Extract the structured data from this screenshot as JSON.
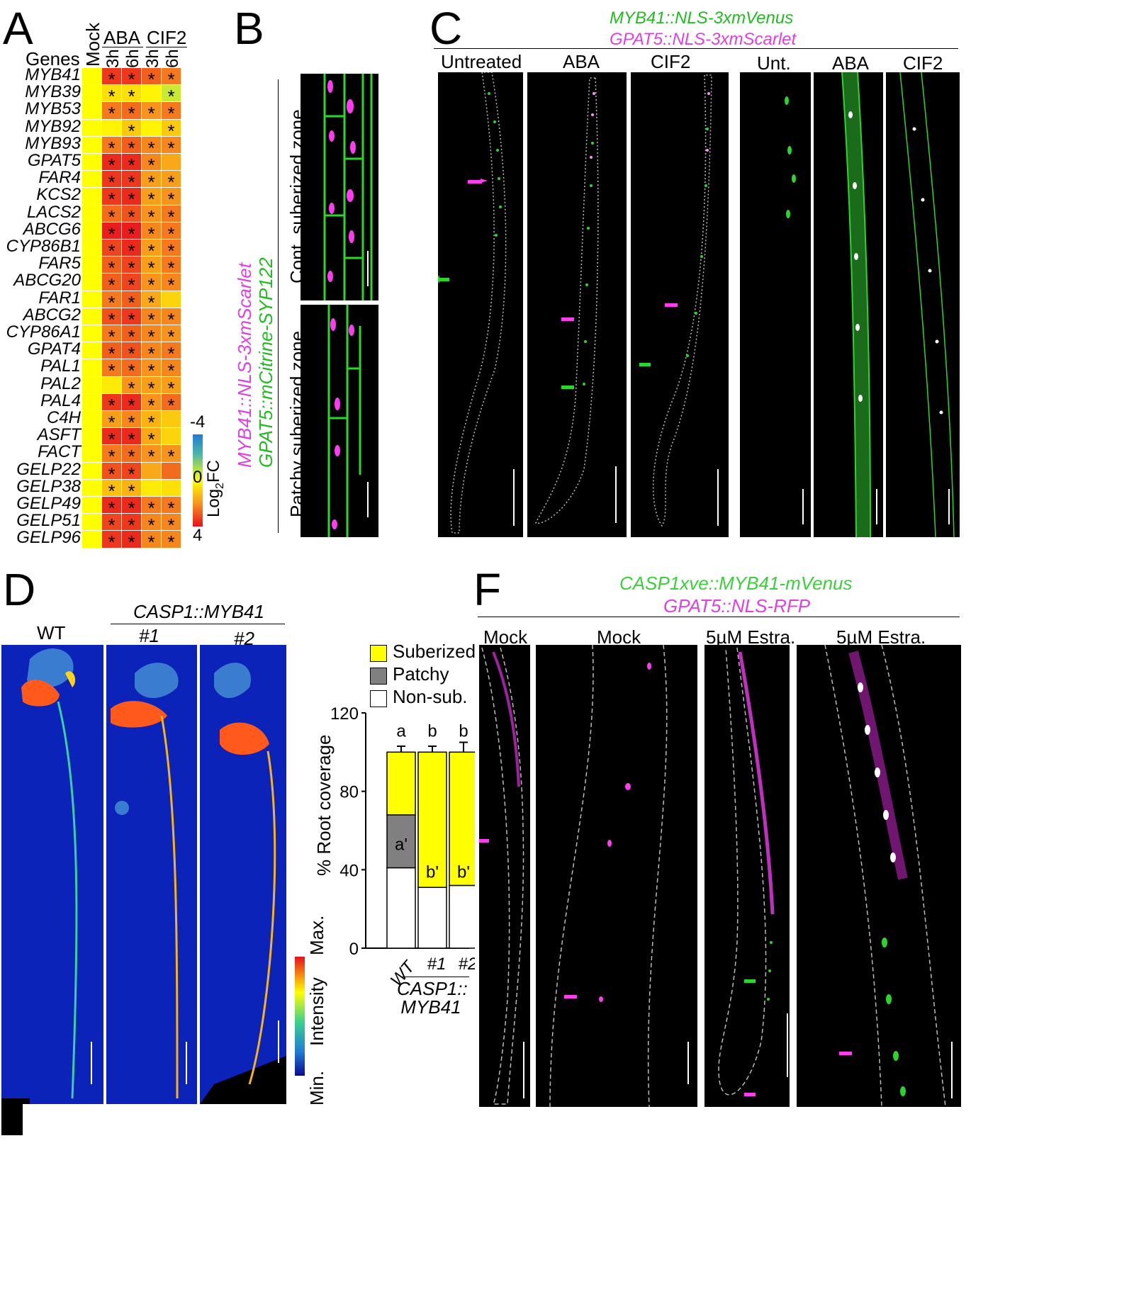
{
  "panelA": {
    "letter": "A",
    "genes_header": "Genes",
    "col_mock": "Mock",
    "group_aba": "ABA",
    "group_cif2": "CIF2",
    "cols": [
      "3h",
      "6h",
      "3h",
      "6h"
    ],
    "genes": [
      "MYB41",
      "MYB39",
      "MYB53",
      "MYB92",
      "MYB93",
      "GPAT5",
      "FAR4",
      "KCS2",
      "LACS2",
      "ABCG6",
      "CYP86B1",
      "FAR5",
      "ABCG20",
      "FAR1",
      "ABCG2",
      "CYP86A1",
      "GPAT4",
      "PAL1",
      "PAL2",
      "PAL4",
      "C4H",
      "ASFT",
      "FACT",
      "GELP22",
      "GELP38",
      "GELP49",
      "GELP51",
      "GELP96"
    ],
    "log2fc": [
      [
        0,
        3.4,
        3.4,
        2.8,
        2.4
      ],
      [
        0,
        0.6,
        0.6,
        0.2,
        -0.6
      ],
      [
        0,
        2.4,
        2.6,
        2.0,
        2.4
      ],
      [
        0,
        0.2,
        1.0,
        0.2,
        1.0
      ],
      [
        0,
        2.4,
        2.8,
        2.2,
        2.2
      ],
      [
        0,
        3.6,
        3.6,
        2.2,
        1.6
      ],
      [
        0,
        3.4,
        3.4,
        1.8,
        1.8
      ],
      [
        0,
        3.4,
        3.6,
        1.8,
        2.0
      ],
      [
        0,
        2.6,
        3.0,
        2.0,
        2.4
      ],
      [
        0,
        3.8,
        3.8,
        2.2,
        2.4
      ],
      [
        0,
        3.2,
        3.6,
        1.8,
        2.4
      ],
      [
        0,
        2.8,
        3.2,
        1.8,
        2.4
      ],
      [
        0,
        2.8,
        3.2,
        2.0,
        2.2
      ],
      [
        0,
        2.4,
        2.8,
        1.6,
        0.8
      ],
      [
        0,
        3.0,
        3.4,
        2.2,
        2.2
      ],
      [
        0,
        2.4,
        2.8,
        2.2,
        2.0
      ],
      [
        0,
        2.8,
        3.0,
        2.2,
        2.4
      ],
      [
        0,
        2.4,
        2.6,
        2.0,
        2.2
      ],
      [
        0,
        0.4,
        2.0,
        1.8,
        1.8
      ],
      [
        0,
        3.4,
        3.6,
        2.0,
        2.6
      ],
      [
        0,
        1.8,
        2.2,
        1.4,
        1.0
      ],
      [
        0,
        3.6,
        3.6,
        1.6,
        0.8
      ],
      [
        0,
        2.4,
        2.6,
        2.0,
        2.0
      ],
      [
        0,
        3.0,
        3.2,
        1.6,
        2.6
      ],
      [
        0,
        1.2,
        1.4,
        0.4,
        0.6
      ],
      [
        0,
        3.6,
        3.6,
        2.4,
        2.4
      ],
      [
        0,
        3.2,
        3.4,
        2.2,
        2.2
      ],
      [
        0,
        3.4,
        3.6,
        2.2,
        2.2
      ]
    ],
    "sig": [
      [
        0,
        1,
        1,
        1,
        1
      ],
      [
        0,
        1,
        1,
        0,
        1
      ],
      [
        0,
        1,
        1,
        1,
        1
      ],
      [
        0,
        0,
        1,
        0,
        1
      ],
      [
        0,
        1,
        1,
        1,
        1
      ],
      [
        0,
        1,
        1,
        1,
        0
      ],
      [
        0,
        1,
        1,
        1,
        1
      ],
      [
        0,
        1,
        1,
        1,
        1
      ],
      [
        0,
        1,
        1,
        1,
        1
      ],
      [
        0,
        1,
        1,
        1,
        1
      ],
      [
        0,
        1,
        1,
        1,
        1
      ],
      [
        0,
        1,
        1,
        1,
        1
      ],
      [
        0,
        1,
        1,
        1,
        1
      ],
      [
        0,
        1,
        1,
        1,
        0
      ],
      [
        0,
        1,
        1,
        1,
        1
      ],
      [
        0,
        1,
        1,
        1,
        1
      ],
      [
        0,
        1,
        1,
        1,
        1
      ],
      [
        0,
        1,
        1,
        1,
        1
      ],
      [
        0,
        0,
        1,
        1,
        1
      ],
      [
        0,
        1,
        1,
        1,
        1
      ],
      [
        0,
        1,
        1,
        1,
        0
      ],
      [
        0,
        1,
        1,
        1,
        0
      ],
      [
        0,
        1,
        1,
        1,
        1
      ],
      [
        0,
        1,
        1,
        0,
        0
      ],
      [
        0,
        1,
        1,
        0,
        0
      ],
      [
        0,
        1,
        1,
        1,
        1
      ],
      [
        0,
        1,
        1,
        1,
        1
      ],
      [
        0,
        1,
        1,
        1,
        1
      ]
    ],
    "star": "*",
    "scale_top": "-4",
    "scale_mid": "0",
    "scale_bottom": "4",
    "scale_label_main": "Log",
    "scale_label_sub": "2",
    "scale_label_end": "FC"
  },
  "panelB": {
    "letter": "B",
    "line1": "MYB41::NLS-3xmScarlet",
    "line2": "GPAT5::mCitrine-SYP122",
    "zone_top": "Cont. suberized zone",
    "zone_bottom": "Patchy suberized zone"
  },
  "panelC": {
    "letter": "C",
    "line1": "MYB41::NLS-3xmVenus",
    "line2": "GPAT5::NLS-3xmScarlet",
    "cols": [
      "Untreated",
      "ABA",
      "CIF2",
      "Unt.",
      "ABA",
      "CIF2"
    ]
  },
  "panelD": {
    "letter": "D",
    "wt": "WT",
    "construct": "CASP1::MYB41",
    "line1": "#1",
    "line2": "#2",
    "intensity_max": "Max.",
    "intensity_label": "Intensity",
    "intensity_min": "Min."
  },
  "panelE": {
    "legend": [
      "Suberized",
      "Patchy",
      "Non-sub."
    ],
    "colors": [
      "#ffff00",
      "#808080",
      "#ffffff"
    ]
  },
  "chart_data": {
    "type": "bar",
    "stacked": true,
    "ylabel": "% Root coverage",
    "ylim": [
      0,
      120
    ],
    "yticks": [
      "0",
      "40",
      "80",
      "120"
    ],
    "categories": [
      "WT",
      "#1",
      "#2"
    ],
    "group_label": "CASP1:: MYB41",
    "series": [
      {
        "name": "Non-sub.",
        "values": [
          41,
          31,
          32
        ],
        "err": [
          5,
          4,
          7
        ],
        "color": "#ffffff"
      },
      {
        "name": "Patchy",
        "values": [
          27,
          0,
          0
        ],
        "err": [
          3,
          0,
          0
        ],
        "color": "#808080"
      },
      {
        "name": "Suberized",
        "values": [
          32,
          69,
          68
        ],
        "err": [
          3,
          3,
          5
        ],
        "color": "#ffff00"
      }
    ],
    "letters_top": [
      "a",
      "b",
      "b"
    ],
    "letters_inner": [
      "a'",
      "b'",
      "b'"
    ]
  },
  "panelF": {
    "letter": "F",
    "line1": "CASP1xve::MYB41-mVenus",
    "line2": "GPAT5::NLS-RFP",
    "cols": [
      "Mock",
      "Mock",
      "5µM Estra.",
      "5µM Estra."
    ]
  }
}
